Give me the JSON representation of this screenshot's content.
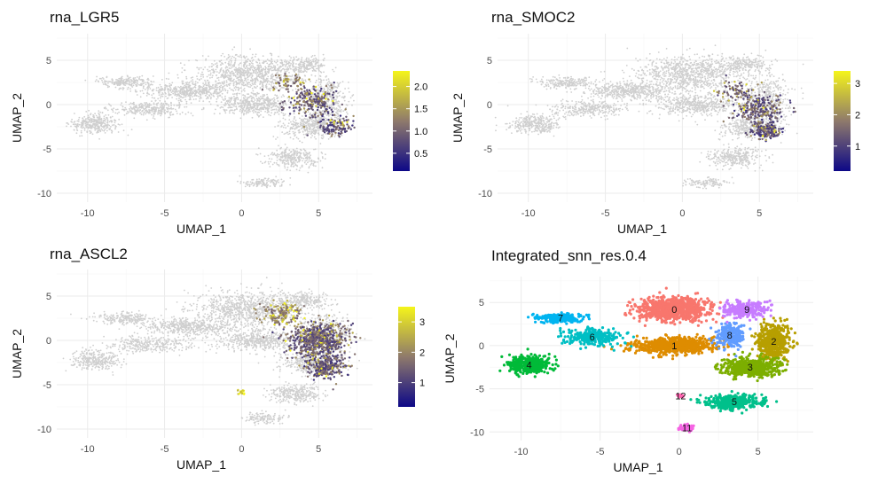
{
  "chart_data": [
    {
      "type": "scatter",
      "title": "rna_LGR5",
      "xlabel": "UMAP_1",
      "ylabel": "UMAP_2",
      "xlim": [
        -12,
        8.5
      ],
      "ylim": [
        -11,
        8
      ],
      "xticks": [
        "-10",
        "-5",
        "0",
        "5"
      ],
      "yticks": [
        "-10",
        "-5",
        "0",
        "5"
      ],
      "grid": true,
      "legend": {
        "type": "colorbar",
        "placement": "right",
        "range": [
          0.1,
          2.35
        ],
        "ticks": [
          "0.5",
          "1.0",
          "1.5",
          "2.0"
        ],
        "tick_values": [
          0.5,
          1.0,
          1.5,
          2.0
        ]
      },
      "colormap": {
        "low": "#0d0887",
        "mid": "#8f7a6b",
        "high": "#f5f51a",
        "background": "#cfcfcf"
      },
      "expression_hotspots": [
        {
          "x": 4.5,
          "y": 0.5,
          "spread": 1.6,
          "n": 220,
          "mean": 0.6
        },
        {
          "x": 6.0,
          "y": -2.5,
          "spread": 1.2,
          "n": 120,
          "mean": 0.5
        },
        {
          "x": 3.0,
          "y": 2.5,
          "spread": 1.0,
          "n": 60,
          "mean": 0.9
        }
      ]
    },
    {
      "type": "scatter",
      "title": "rna_SMOC2",
      "xlabel": "UMAP_1",
      "ylabel": "UMAP_2",
      "xlim": [
        -12,
        8.5
      ],
      "ylim": [
        -11,
        8
      ],
      "xticks": [
        "-10",
        "-5",
        "0",
        "5"
      ],
      "yticks": [
        "-10",
        "-5",
        "0",
        "5"
      ],
      "grid": true,
      "legend": {
        "type": "colorbar",
        "placement": "right",
        "range": [
          0.2,
          3.4
        ],
        "ticks": [
          "1",
          "2",
          "3"
        ],
        "tick_values": [
          1,
          2,
          3
        ]
      },
      "colormap": {
        "low": "#0d0887",
        "mid": "#8f7a6b",
        "high": "#f5f51a",
        "background": "#cfcfcf"
      },
      "expression_hotspots": [
        {
          "x": 5.0,
          "y": -0.5,
          "spread": 1.6,
          "n": 260,
          "mean": 0.8
        },
        {
          "x": 5.5,
          "y": -3.0,
          "spread": 0.9,
          "n": 160,
          "mean": 0.7
        },
        {
          "x": 3.5,
          "y": 1.5,
          "spread": 1.3,
          "n": 80,
          "mean": 1.0
        }
      ]
    },
    {
      "type": "scatter",
      "title": "rna_ASCL2",
      "xlabel": "UMAP_1",
      "ylabel": "UMAP_2",
      "xlim": [
        -12,
        8.5
      ],
      "ylim": [
        -11,
        8
      ],
      "xticks": [
        "-10",
        "-5",
        "0",
        "5"
      ],
      "yticks": [
        "-10",
        "-5",
        "0",
        "5"
      ],
      "grid": true,
      "legend": {
        "type": "colorbar",
        "placement": "right",
        "range": [
          0.2,
          3.5
        ],
        "ticks": [
          "1",
          "2",
          "3"
        ],
        "tick_values": [
          1,
          2,
          3
        ]
      },
      "colormap": {
        "low": "#0d0887",
        "mid": "#8f7a6b",
        "high": "#f5f51a",
        "background": "#cfcfcf"
      },
      "expression_hotspots": [
        {
          "x": 5.0,
          "y": 0.0,
          "spread": 1.9,
          "n": 700,
          "mean": 0.9
        },
        {
          "x": 5.5,
          "y": -3.0,
          "spread": 1.2,
          "n": 300,
          "mean": 0.8
        },
        {
          "x": 2.5,
          "y": 3.0,
          "spread": 1.4,
          "n": 160,
          "mean": 1.4
        },
        {
          "x": 0.0,
          "y": -5.8,
          "spread": 0.3,
          "n": 20,
          "mean": 2.6
        }
      ]
    },
    {
      "type": "scatter",
      "title": "Integrated_snn_res.0.4",
      "xlabel": "UMAP_1",
      "ylabel": "UMAP_2",
      "xlim": [
        -12,
        8.5
      ],
      "ylim": [
        -11,
        8
      ],
      "xticks": [
        "-10",
        "-5",
        "0",
        "5"
      ],
      "yticks": [
        "-10",
        "-5",
        "0",
        "5"
      ],
      "grid": true,
      "clusters": [
        {
          "label": "0",
          "x": -0.3,
          "y": 4.2,
          "sx": 2.3,
          "sy": 1.3,
          "n": 900,
          "color": "#F8766D"
        },
        {
          "label": "1",
          "x": -0.3,
          "y": 0.0,
          "sx": 2.6,
          "sy": 0.9,
          "n": 700,
          "color": "#DE8C00"
        },
        {
          "label": "2",
          "x": 6.0,
          "y": 0.5,
          "sx": 1.0,
          "sy": 2.0,
          "n": 500,
          "color": "#B79F00"
        },
        {
          "label": "3",
          "x": 4.5,
          "y": -2.5,
          "sx": 1.8,
          "sy": 1.2,
          "n": 550,
          "color": "#7CAE00"
        },
        {
          "label": "4",
          "x": -9.5,
          "y": -2.2,
          "sx": 1.3,
          "sy": 1.0,
          "n": 380,
          "color": "#00BA38"
        },
        {
          "label": "5",
          "x": 3.5,
          "y": -6.5,
          "sx": 1.7,
          "sy": 0.8,
          "n": 400,
          "color": "#00C08B"
        },
        {
          "label": "6",
          "x": -5.5,
          "y": 1.0,
          "sx": 1.8,
          "sy": 0.9,
          "n": 300,
          "color": "#00BFC4"
        },
        {
          "label": "7",
          "x": -7.5,
          "y": 3.2,
          "sx": 1.5,
          "sy": 0.5,
          "n": 220,
          "color": "#00B4F0"
        },
        {
          "label": "8",
          "x": 3.2,
          "y": 1.2,
          "sx": 0.9,
          "sy": 1.3,
          "n": 250,
          "color": "#619CFF"
        },
        {
          "label": "9",
          "x": 4.3,
          "y": 4.2,
          "sx": 1.4,
          "sy": 0.9,
          "n": 280,
          "color": "#C77CFF"
        },
        {
          "label": "11",
          "x": 0.5,
          "y": -9.5,
          "sx": 0.5,
          "sy": 0.4,
          "n": 70,
          "color": "#F564E3"
        },
        {
          "label": "12",
          "x": 0.1,
          "y": -5.8,
          "sx": 0.2,
          "sy": 0.15,
          "n": 25,
          "color": "#FF64B0"
        }
      ]
    }
  ]
}
